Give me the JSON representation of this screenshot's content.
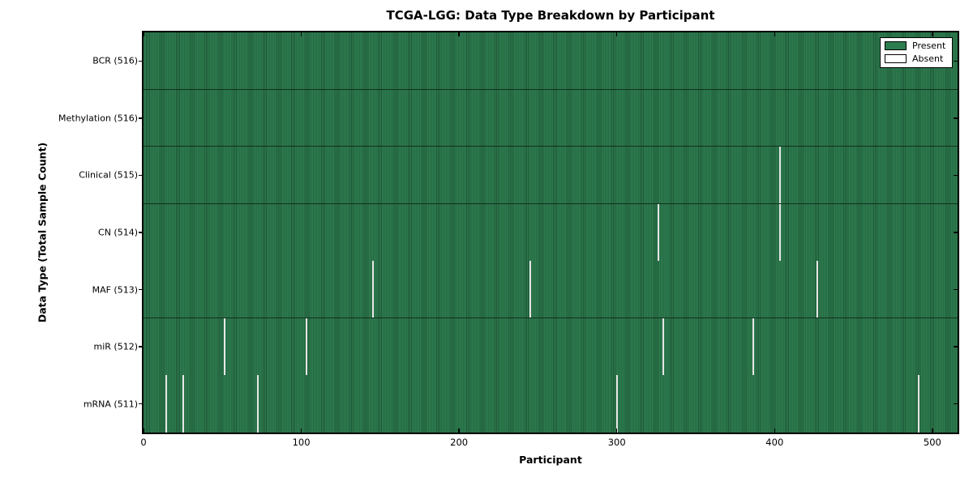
{
  "chart_data": {
    "type": "heatmap",
    "title": "TCGA-LGG: Data Type Breakdown by Participant",
    "xlabel": "Participant",
    "ylabel": "Data Type (Total Sample Count)",
    "x_ticks": [
      0,
      100,
      200,
      300,
      400,
      500
    ],
    "x_range": [
      0,
      516
    ],
    "n_participants": 516,
    "grid": false,
    "legend_position": "upper right",
    "legend": [
      {
        "label": "Present",
        "color": "#2e7d50"
      },
      {
        "label": "Absent",
        "color": "#ffffff"
      }
    ],
    "rows": [
      {
        "label": "BCR (516)",
        "present_count": 516,
        "absent_participants": []
      },
      {
        "label": "Methylation (516)",
        "present_count": 516,
        "absent_participants": []
      },
      {
        "label": "Clinical (515)",
        "present_count": 515,
        "absent_participants": [
          403
        ]
      },
      {
        "label": "CN (514)",
        "present_count": 514,
        "absent_participants": [
          326,
          403
        ]
      },
      {
        "label": "MAF (513)",
        "present_count": 513,
        "absent_participants": [
          145,
          245,
          427
        ]
      },
      {
        "label": "miR (512)",
        "present_count": 512,
        "absent_participants": [
          51,
          103,
          329,
          386
        ]
      },
      {
        "label": "mRNA (511)",
        "present_count": 511,
        "absent_participants": [
          14,
          25,
          72,
          300,
          491
        ]
      }
    ],
    "colors": {
      "present": "#2e7d50",
      "present_edge": "#1e5636",
      "absent_line": "#e6e6e6",
      "row_divider": "#12301d",
      "axis": "#000000",
      "background": "#ffffff"
    }
  }
}
